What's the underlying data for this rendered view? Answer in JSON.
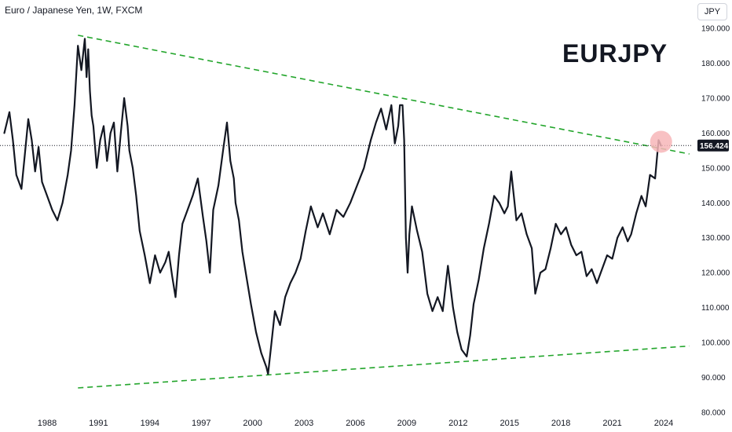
{
  "header": {
    "title": "Euro / Japanese Yen, 1W, FXCM"
  },
  "currency_badge": "JPY",
  "watermark": "EURJPY",
  "colors": {
    "line": "#131722",
    "trend": "#22a52b",
    "highlight": "#f7b6b8",
    "label_bg": "#131722"
  },
  "chart_data": {
    "type": "line",
    "xlabel": "",
    "ylabel": "",
    "ylim": [
      80,
      190
    ],
    "xlim": [
      1985.5,
      2026.0
    ],
    "y_ticks": [
      190,
      180,
      170,
      160,
      150,
      140,
      130,
      120,
      110,
      100,
      90,
      80
    ],
    "y_tick_labels": [
      "190.000",
      "180.000",
      "170.000",
      "160.000",
      "150.000",
      "140.000",
      "130.000",
      "120.000",
      "110.000",
      "100.000",
      "90.000",
      "80.000"
    ],
    "x_ticks": [
      1988,
      1991,
      1994,
      1997,
      2000,
      2003,
      2006,
      2009,
      2012,
      2015,
      2018,
      2021,
      2024
    ],
    "x_tick_labels": [
      "1988",
      "1991",
      "1994",
      "1997",
      "2000",
      "2003",
      "2006",
      "2009",
      "2012",
      "2015",
      "2018",
      "2021",
      "2024"
    ],
    "current_price": 156.424,
    "current_price_label": "156.424",
    "grid": false,
    "series": [
      {
        "x": [
          1985.5,
          1985.8,
          1986.0,
          1986.2,
          1986.5,
          1986.7,
          1986.9,
          1987.1,
          1987.3,
          1987.5,
          1987.7,
          1988.0,
          1988.3,
          1988.6,
          1988.9,
          1989.2,
          1989.4,
          1989.6,
          1989.8,
          1990.0,
          1990.2,
          1990.3,
          1990.4,
          1990.5,
          1990.6,
          1990.7,
          1990.9,
          1991.1,
          1991.3,
          1991.5,
          1991.7,
          1991.9,
          1992.1,
          1992.3,
          1992.5,
          1992.7,
          1992.8,
          1993.0,
          1993.2,
          1993.4,
          1993.7,
          1994.0,
          1994.3,
          1994.6,
          1994.9,
          1995.1,
          1995.3,
          1995.5,
          1995.7,
          1995.9,
          1996.2,
          1996.5,
          1996.8,
          1997.1,
          1997.3,
          1997.5,
          1997.7,
          1998.0,
          1998.3,
          1998.5,
          1998.7,
          1998.9,
          1999.0,
          1999.2,
          1999.4,
          1999.6,
          1999.9,
          2000.2,
          2000.5,
          2000.8,
          2000.9,
          2001.1,
          2001.3,
          2001.6,
          2001.9,
          2002.2,
          2002.5,
          2002.8,
          2003.1,
          2003.4,
          2003.8,
          2004.1,
          2004.5,
          2004.9,
          2005.3,
          2005.7,
          2006.1,
          2006.5,
          2006.9,
          2007.2,
          2007.5,
          2007.8,
          2008.1,
          2008.3,
          2008.5,
          2008.6,
          2008.75,
          2008.85,
          2008.95,
          2009.05,
          2009.15,
          2009.3,
          2009.6,
          2009.9,
          2010.2,
          2010.5,
          2010.8,
          2011.1,
          2011.4,
          2011.7,
          2011.95,
          2012.2,
          2012.5,
          2012.7,
          2012.9,
          2013.2,
          2013.5,
          2013.8,
          2014.1,
          2014.4,
          2014.7,
          2014.9,
          2015.1,
          2015.4,
          2015.7,
          2016.0,
          2016.3,
          2016.5,
          2016.8,
          2017.1,
          2017.4,
          2017.7,
          2018.0,
          2018.3,
          2018.6,
          2018.9,
          2019.2,
          2019.5,
          2019.8,
          2020.1,
          2020.4,
          2020.7,
          2021.0,
          2021.3,
          2021.6,
          2021.9,
          2022.1,
          2022.4,
          2022.7,
          2022.95,
          2023.2,
          2023.5,
          2023.7,
          2023.85
        ],
        "y": [
          160,
          166,
          158,
          148,
          144,
          154,
          164,
          158,
          149,
          156,
          146,
          142,
          138,
          135,
          140,
          148,
          155,
          168,
          185,
          178,
          187,
          176,
          184,
          172,
          165,
          162,
          150,
          158,
          162,
          152,
          160,
          163,
          149,
          160,
          170,
          162,
          155,
          150,
          142,
          132,
          125,
          117,
          125,
          120,
          123,
          126,
          119,
          113,
          125,
          134,
          138,
          142,
          147,
          136,
          129,
          120,
          138,
          145,
          156,
          163,
          152,
          147,
          140,
          135,
          126,
          120,
          111,
          103,
          97,
          93,
          91,
          100,
          109,
          105,
          113,
          117,
          120,
          124,
          132,
          139,
          133,
          137,
          131,
          138,
          136,
          140,
          145,
          150,
          158,
          163,
          167,
          161,
          168,
          157,
          162,
          168,
          168,
          158,
          130,
          120,
          131,
          139,
          132,
          126,
          114,
          109,
          113,
          109,
          122,
          110,
          103,
          98,
          96,
          102,
          111,
          118,
          127,
          134,
          142,
          140,
          137,
          139,
          149,
          135,
          137,
          131,
          127,
          114,
          120,
          121,
          127,
          134,
          131,
          133,
          128,
          125,
          126,
          119,
          121,
          117,
          121,
          125,
          124,
          130,
          133,
          129,
          131,
          137,
          142,
          139,
          148,
          147,
          158,
          156.4
        ]
      }
    ],
    "trendlines": [
      {
        "name": "upper",
        "x": [
          1989.8,
          2025.5
        ],
        "y": [
          188,
          154
        ]
      },
      {
        "name": "lower",
        "x": [
          1989.8,
          2025.5
        ],
        "y": [
          87,
          99
        ]
      }
    ],
    "highlight_point": {
      "x": 2023.85,
      "y": 157.5
    }
  }
}
